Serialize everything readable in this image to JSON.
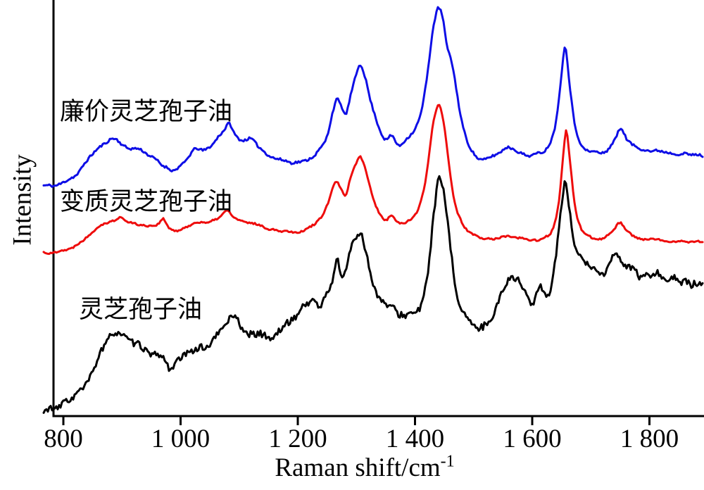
{
  "chart_data": {
    "type": "line",
    "title": "",
    "ylabel": "Intensity",
    "xlabel": {
      "text": "Raman shift/cm",
      "sup": "-1"
    },
    "grid": false,
    "legend": "inline-annotations",
    "x_range": [
      766,
      1893
    ],
    "x_ticks": [
      {
        "label": "800",
        "value": 800
      },
      {
        "label": "1 000",
        "value": 1000
      },
      {
        "label": "1 200",
        "value": 1200
      },
      {
        "label": "1 400",
        "value": 1400
      },
      {
        "label": "1 600",
        "value": 1600
      },
      {
        "label": "1 800",
        "value": 1800
      }
    ],
    "y_axis_unit": "arbitrary units (pixels above baseline)",
    "series": [
      {
        "name": "廉价灵芝孢子油",
        "color": "#0e0ee6",
        "seed": 11,
        "noise_fine": 1.7,
        "noise_coarse": 2.1,
        "points": [
          [
            766,
            326
          ],
          [
            782,
            327
          ],
          [
            800,
            334
          ],
          [
            820,
            342
          ],
          [
            845,
            367
          ],
          [
            862,
            382
          ],
          [
            875,
            390
          ],
          [
            888,
            392
          ],
          [
            900,
            385
          ],
          [
            915,
            381
          ],
          [
            930,
            380
          ],
          [
            945,
            370
          ],
          [
            960,
            362
          ],
          [
            975,
            355
          ],
          [
            988,
            349
          ],
          [
            1000,
            354
          ],
          [
            1012,
            366
          ],
          [
            1025,
            381
          ],
          [
            1038,
            377
          ],
          [
            1052,
            384
          ],
          [
            1065,
            396
          ],
          [
            1075,
            407
          ],
          [
            1083,
            414
          ],
          [
            1092,
            402
          ],
          [
            1105,
            392
          ],
          [
            1120,
            393
          ],
          [
            1135,
            382
          ],
          [
            1150,
            372
          ],
          [
            1165,
            365
          ],
          [
            1180,
            361
          ],
          [
            1200,
            361
          ],
          [
            1218,
            365
          ],
          [
            1235,
            376
          ],
          [
            1250,
            399
          ],
          [
            1260,
            434
          ],
          [
            1267,
            451
          ],
          [
            1275,
            437
          ],
          [
            1282,
            429
          ],
          [
            1290,
            457
          ],
          [
            1300,
            487
          ],
          [
            1307,
            499
          ],
          [
            1315,
            482
          ],
          [
            1325,
            447
          ],
          [
            1337,
            412
          ],
          [
            1348,
            394
          ],
          [
            1360,
            398
          ],
          [
            1372,
            386
          ],
          [
            1385,
            395
          ],
          [
            1398,
            407
          ],
          [
            1410,
            432
          ],
          [
            1420,
            477
          ],
          [
            1430,
            544
          ],
          [
            1438,
            576
          ],
          [
            1442,
            578
          ],
          [
            1448,
            562
          ],
          [
            1455,
            522
          ],
          [
            1460,
            512
          ],
          [
            1468,
            477
          ],
          [
            1478,
            427
          ],
          [
            1490,
            390
          ],
          [
            1502,
            372
          ],
          [
            1515,
            365
          ],
          [
            1532,
            370
          ],
          [
            1548,
            377
          ],
          [
            1562,
            381
          ],
          [
            1578,
            373
          ],
          [
            1595,
            371
          ],
          [
            1610,
            373
          ],
          [
            1625,
            382
          ],
          [
            1638,
            407
          ],
          [
            1648,
            467
          ],
          [
            1656,
            526
          ],
          [
            1663,
            477
          ],
          [
            1672,
            417
          ],
          [
            1683,
            387
          ],
          [
            1695,
            377
          ],
          [
            1710,
            374
          ],
          [
            1725,
            377
          ],
          [
            1740,
            392
          ],
          [
            1752,
            409
          ],
          [
            1762,
            392
          ],
          [
            1775,
            382
          ],
          [
            1790,
            379
          ],
          [
            1810,
            377
          ],
          [
            1835,
            375
          ],
          [
            1860,
            373
          ],
          [
            1893,
            370
          ]
        ]
      },
      {
        "name": "变质灵芝孢子油",
        "color": "#ee0c0c",
        "seed": 22,
        "noise_fine": 1.2,
        "noise_coarse": 1.5,
        "points": [
          [
            766,
            232
          ],
          [
            782,
            232
          ],
          [
            800,
            235
          ],
          [
            818,
            240
          ],
          [
            840,
            254
          ],
          [
            858,
            267
          ],
          [
            872,
            274
          ],
          [
            885,
            277
          ],
          [
            898,
            282
          ],
          [
            908,
            276
          ],
          [
            920,
            274
          ],
          [
            935,
            272
          ],
          [
            950,
            270
          ],
          [
            962,
            274
          ],
          [
            970,
            281
          ],
          [
            980,
            267
          ],
          [
            992,
            262
          ],
          [
            1005,
            266
          ],
          [
            1020,
            273
          ],
          [
            1035,
            275
          ],
          [
            1052,
            276
          ],
          [
            1068,
            283
          ],
          [
            1080,
            291
          ],
          [
            1090,
            282
          ],
          [
            1102,
            277
          ],
          [
            1118,
            274
          ],
          [
            1135,
            270
          ],
          [
            1152,
            266
          ],
          [
            1170,
            263
          ],
          [
            1190,
            262
          ],
          [
            1208,
            264
          ],
          [
            1225,
            271
          ],
          [
            1240,
            282
          ],
          [
            1252,
            302
          ],
          [
            1262,
            329
          ],
          [
            1267,
            334
          ],
          [
            1275,
            320
          ],
          [
            1282,
            314
          ],
          [
            1290,
            340
          ],
          [
            1300,
            360
          ],
          [
            1307,
            368
          ],
          [
            1315,
            352
          ],
          [
            1325,
            320
          ],
          [
            1337,
            292
          ],
          [
            1348,
            279
          ],
          [
            1360,
            284
          ],
          [
            1372,
            274
          ],
          [
            1385,
            276
          ],
          [
            1398,
            284
          ],
          [
            1410,
            304
          ],
          [
            1420,
            344
          ],
          [
            1430,
            412
          ],
          [
            1438,
            440
          ],
          [
            1442,
            442
          ],
          [
            1450,
            412
          ],
          [
            1458,
            357
          ],
          [
            1468,
            302
          ],
          [
            1480,
            274
          ],
          [
            1492,
            261
          ],
          [
            1505,
            255
          ],
          [
            1520,
            252
          ],
          [
            1538,
            253
          ],
          [
            1555,
            255
          ],
          [
            1572,
            254
          ],
          [
            1590,
            251
          ],
          [
            1608,
            250
          ],
          [
            1622,
            253
          ],
          [
            1635,
            267
          ],
          [
            1645,
            302
          ],
          [
            1652,
            362
          ],
          [
            1658,
            405
          ],
          [
            1665,
            357
          ],
          [
            1673,
            297
          ],
          [
            1683,
            267
          ],
          [
            1695,
            255
          ],
          [
            1710,
            252
          ],
          [
            1726,
            256
          ],
          [
            1740,
            265
          ],
          [
            1750,
            274
          ],
          [
            1762,
            262
          ],
          [
            1775,
            254
          ],
          [
            1792,
            251
          ],
          [
            1815,
            250
          ],
          [
            1840,
            249
          ],
          [
            1865,
            248
          ],
          [
            1893,
            247
          ]
        ]
      },
      {
        "name": "灵芝孢子油",
        "color": "#000000",
        "seed": 33,
        "noise_fine": 4.5,
        "noise_coarse": 5.5,
        "points": [
          [
            766,
            9
          ],
          [
            782,
            9
          ],
          [
            795,
            14
          ],
          [
            808,
            22
          ],
          [
            820,
            30
          ],
          [
            832,
            40
          ],
          [
            845,
            54
          ],
          [
            858,
            77
          ],
          [
            868,
            97
          ],
          [
            878,
            112
          ],
          [
            890,
            117
          ],
          [
            902,
            114
          ],
          [
            915,
            110
          ],
          [
            928,
            104
          ],
          [
            940,
            94
          ],
          [
            952,
            84
          ],
          [
            962,
            87
          ],
          [
            972,
            82
          ],
          [
            983,
            65
          ],
          [
            993,
            72
          ],
          [
            1003,
            80
          ],
          [
            1015,
            87
          ],
          [
            1028,
            92
          ],
          [
            1042,
            100
          ],
          [
            1055,
            110
          ],
          [
            1068,
            124
          ],
          [
            1080,
            136
          ],
          [
            1090,
            142
          ],
          [
            1100,
            132
          ],
          [
            1112,
            120
          ],
          [
            1125,
            112
          ],
          [
            1140,
            115
          ],
          [
            1155,
            105
          ],
          [
            1170,
            118
          ],
          [
            1185,
            132
          ],
          [
            1200,
            148
          ],
          [
            1213,
            162
          ],
          [
            1225,
            164
          ],
          [
            1238,
            155
          ],
          [
            1250,
            172
          ],
          [
            1260,
            197
          ],
          [
            1267,
            220
          ],
          [
            1275,
            204
          ],
          [
            1283,
            212
          ],
          [
            1292,
            244
          ],
          [
            1302,
            260
          ],
          [
            1308,
            264
          ],
          [
            1316,
            237
          ],
          [
            1326,
            197
          ],
          [
            1338,
            167
          ],
          [
            1350,
            154
          ],
          [
            1362,
            150
          ],
          [
            1375,
            144
          ],
          [
            1388,
            140
          ],
          [
            1400,
            147
          ],
          [
            1412,
            164
          ],
          [
            1422,
            207
          ],
          [
            1432,
            287
          ],
          [
            1440,
            334
          ],
          [
            1445,
            330
          ],
          [
            1452,
            297
          ],
          [
            1462,
            230
          ],
          [
            1472,
            172
          ],
          [
            1485,
            142
          ],
          [
            1500,
            122
          ],
          [
            1515,
            128
          ],
          [
            1530,
            140
          ],
          [
            1545,
            172
          ],
          [
            1558,
            194
          ],
          [
            1570,
            198
          ],
          [
            1582,
            190
          ],
          [
            1595,
            167
          ],
          [
            1602,
            157
          ],
          [
            1612,
            180
          ],
          [
            1622,
            172
          ],
          [
            1632,
            187
          ],
          [
            1642,
            242
          ],
          [
            1650,
            302
          ],
          [
            1657,
            334
          ],
          [
            1664,
            292
          ],
          [
            1672,
            242
          ],
          [
            1682,
            224
          ],
          [
            1694,
            214
          ],
          [
            1708,
            207
          ],
          [
            1722,
            204
          ],
          [
            1735,
            220
          ],
          [
            1748,
            227
          ],
          [
            1760,
            212
          ],
          [
            1772,
            208
          ],
          [
            1788,
            197
          ],
          [
            1805,
            202
          ],
          [
            1822,
            194
          ],
          [
            1840,
            196
          ],
          [
            1858,
            189
          ],
          [
            1875,
            190
          ],
          [
            1893,
            185
          ]
        ]
      }
    ]
  }
}
